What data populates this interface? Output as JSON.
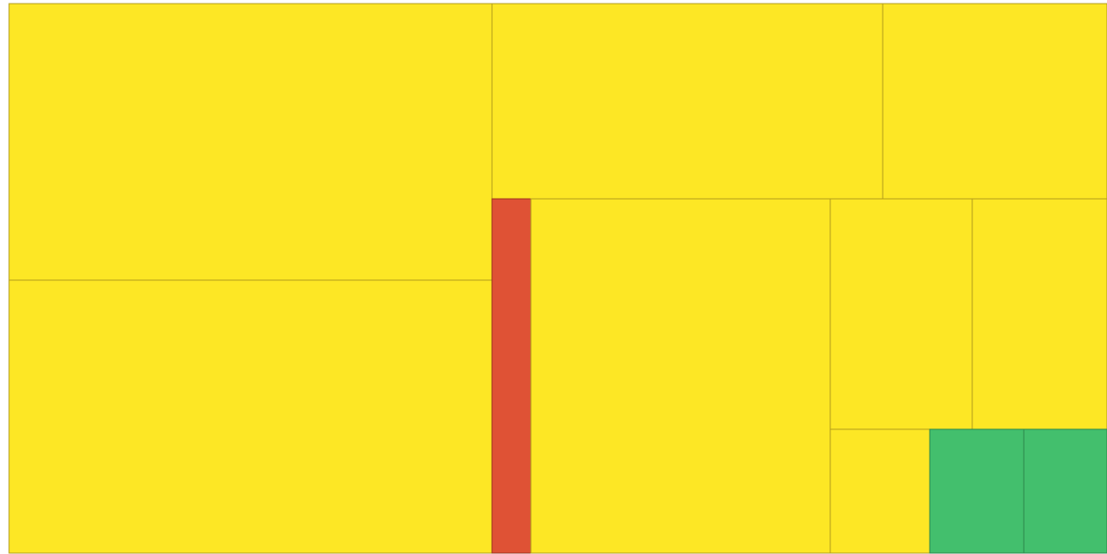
{
  "colors": {
    "yellow": "#FDE725",
    "red": "#DF5235",
    "green": "#43BF6D",
    "border_yellow": "#B39C1C",
    "border_red": "#9E3320",
    "border_green": "#2E8A4C"
  },
  "chart_data": {
    "type": "treemap",
    "title": "",
    "legend": "none",
    "items": [
      {
        "id": "tile-1",
        "color": "yellow",
        "value": 162424
      },
      {
        "id": "tile-2",
        "color": "yellow",
        "value": 162424
      },
      {
        "id": "tile-3",
        "color": "yellow",
        "value": 93312
      },
      {
        "id": "tile-4",
        "color": "yellow",
        "value": 53352
      },
      {
        "id": "tile-5",
        "color": "red",
        "value": 17112
      },
      {
        "id": "tile-6",
        "color": "yellow",
        "value": 130690
      },
      {
        "id": "tile-7",
        "color": "yellow",
        "value": 40035
      },
      {
        "id": "tile-8",
        "color": "yellow",
        "value": 37740
      },
      {
        "id": "tile-9",
        "color": "yellow",
        "value": 15070
      },
      {
        "id": "tile-10",
        "color": "green",
        "value": 14245
      },
      {
        "id": "tile-11",
        "color": "green",
        "value": 12741
      }
    ]
  }
}
